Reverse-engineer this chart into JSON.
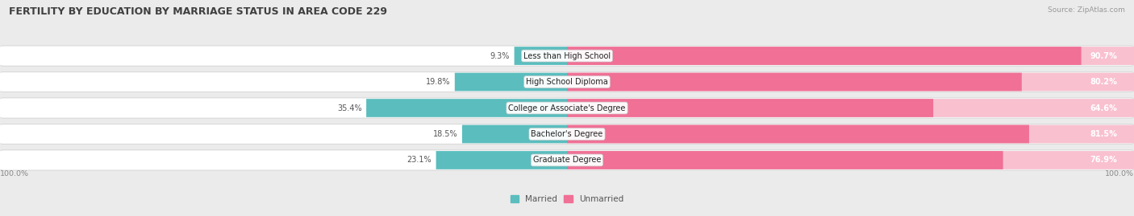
{
  "title": "FERTILITY BY EDUCATION BY MARRIAGE STATUS IN AREA CODE 229",
  "source": "Source: ZipAtlas.com",
  "categories": [
    "Less than High School",
    "High School Diploma",
    "College or Associate's Degree",
    "Bachelor's Degree",
    "Graduate Degree"
  ],
  "married": [
    9.3,
    19.8,
    35.4,
    18.5,
    23.1
  ],
  "unmarried": [
    90.7,
    80.2,
    64.6,
    81.5,
    76.9
  ],
  "married_color": "#5bbdbe",
  "unmarried_color": "#f07096",
  "unmarried_color_light": "#f9c0d0",
  "bg_color": "#ebebeb",
  "row_bg_color": "#f8f8f8",
  "title_color": "#404040",
  "label_color": "#555555",
  "source_color": "#999999",
  "axis_label_color": "#888888",
  "figsize": [
    14.06,
    2.69
  ],
  "dpi": 100
}
